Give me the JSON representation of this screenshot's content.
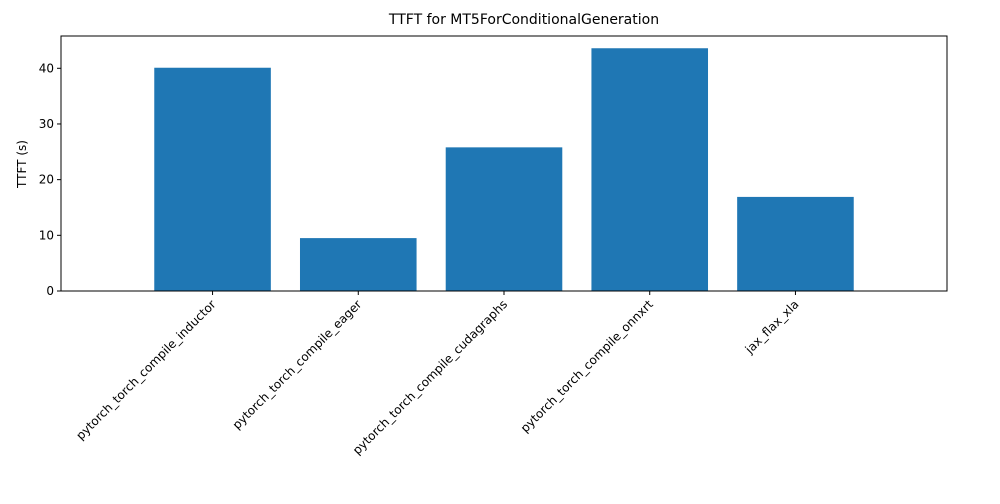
{
  "chart_data": {
    "type": "bar",
    "title": "TTFT for MT5ForConditionalGeneration",
    "xlabel": "",
    "ylabel": "TTFT (s)",
    "categories": [
      "pytorch_torch_compile_inductor",
      "pytorch_torch_compile_eager",
      "pytorch_torch_compile_cudagraphs",
      "pytorch_torch_compile_onnxrt",
      "jax_flax_xla"
    ],
    "values": [
      40.1,
      9.5,
      25.8,
      43.6,
      16.9
    ],
    "ylim": [
      0,
      45.8
    ],
    "yticks": [
      0,
      10,
      20,
      30,
      40
    ],
    "bar_color": "#1f77b4",
    "grid": false,
    "legend": "none"
  }
}
